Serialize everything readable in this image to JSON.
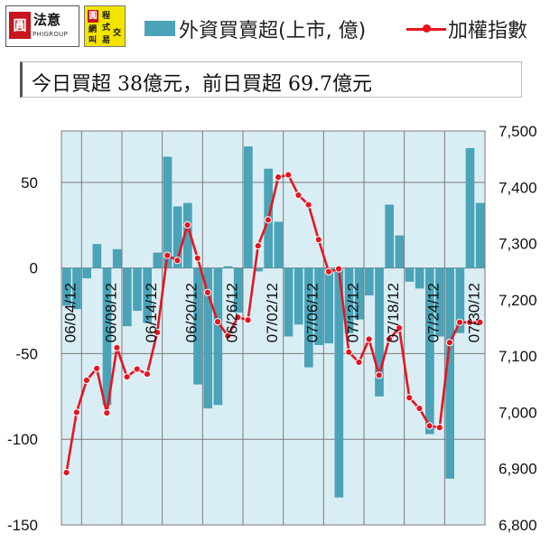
{
  "logos": {
    "logo_a_seal": "圓",
    "logo_a_title": "法意",
    "logo_a_sub": "PHIGROUP",
    "logo_b_seal": "圓",
    "logo_b_chars": [
      "程",
      "網",
      "式",
      "叫",
      "交",
      "易"
    ]
  },
  "legend": {
    "bar_label": "外資買賣超(上市, 億)",
    "line_label": "加權指數"
  },
  "summary": {
    "text": "今日買超 38億元，前日買超 69.7億元"
  },
  "colors": {
    "bar": "#4aa3b8",
    "line": "#e8141e",
    "plot_bg": "#d9eef4",
    "grid": "#7a7a7a"
  },
  "chart_data": {
    "type": "bar+line",
    "title": "",
    "left_axis": {
      "label": "外資買賣超(上市, 億)",
      "range": [
        -150,
        80
      ],
      "ticks": [
        "50",
        "0",
        "-50",
        "-100",
        "-150"
      ],
      "tick_values": [
        50,
        0,
        -50,
        -100,
        -150
      ]
    },
    "right_axis": {
      "label": "加權指數",
      "range": [
        6800,
        7500
      ],
      "ticks": [
        "7,500",
        "7,400",
        "7,300",
        "7,200",
        "7,100",
        "7,000",
        "6,900",
        "6,800"
      ],
      "tick_values": [
        7500,
        7400,
        7300,
        7200,
        7100,
        7000,
        6900,
        6800
      ]
    },
    "date_labels": [
      "06/04/12",
      "06/08/12",
      "06/14/12",
      "06/20/12",
      "06/26/12",
      "07/02/12",
      "07/06/12",
      "07/12/12",
      "07/18/12",
      "07/24/12",
      "07/30/12"
    ],
    "date_label_positions": [
      0,
      4,
      8,
      12,
      16,
      20,
      24,
      28,
      32,
      36,
      40
    ],
    "grid": true,
    "series": [
      {
        "name": "外資買賣超(上市, 億)",
        "kind": "bar",
        "values": [
          -22,
          -24,
          -6,
          14,
          -80,
          11,
          -34,
          -25,
          -32,
          9,
          65,
          36,
          38,
          -68,
          -82,
          -80,
          1,
          -26,
          71,
          -2,
          58,
          27,
          -40,
          -33,
          -58,
          -45,
          -44,
          -134,
          -38,
          -30,
          -16,
          -75,
          37,
          19,
          -8,
          -12,
          -97,
          -40,
          -123,
          -38,
          70,
          38
        ]
      },
      {
        "name": "加權指數",
        "kind": "line",
        "values": [
          6893,
          7000,
          7057,
          7078,
          6999,
          7115,
          7063,
          7077,
          7068,
          7142,
          7279,
          7270,
          7333,
          7274,
          7213,
          7161,
          7136,
          7169,
          7164,
          7296,
          7342,
          7418,
          7422,
          7386,
          7369,
          7307,
          7250,
          7255,
          7107,
          7089,
          7130,
          7066,
          7130,
          7150,
          7026,
          7007,
          6976,
          6973,
          7124,
          7160,
          7160,
          7160
        ]
      }
    ]
  }
}
